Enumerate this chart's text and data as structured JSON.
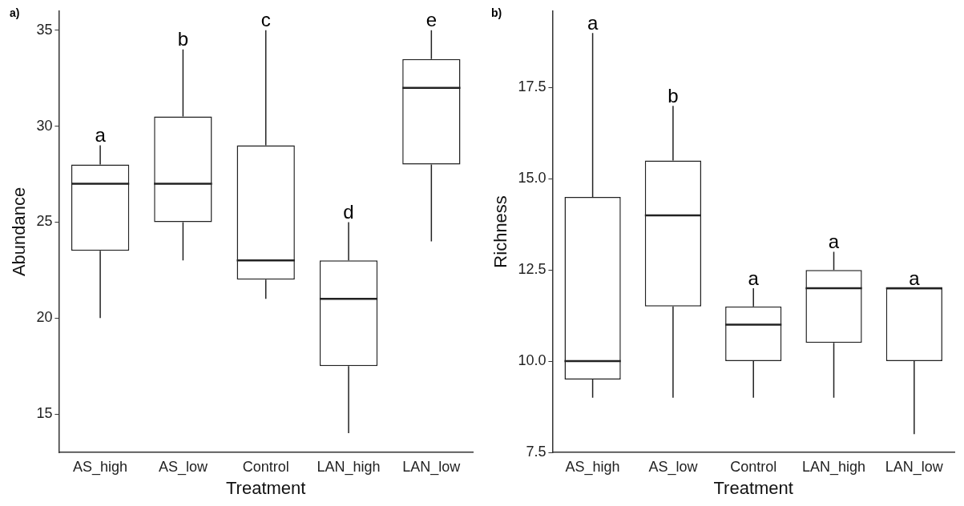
{
  "chart_data": [
    {
      "type": "box",
      "xlabel": "Treatment",
      "ylabel": "Abundance",
      "categories": [
        "AS_high",
        "AS_low",
        "Control",
        "LAN_high",
        "LAN_low"
      ],
      "boxes": [
        {
          "low": 20,
          "q1": 23.5,
          "median": 27,
          "q3": 28,
          "high": 29
        },
        {
          "low": 23,
          "q1": 25,
          "median": 27,
          "q3": 30.5,
          "high": 34
        },
        {
          "low": 21,
          "q1": 22,
          "median": 23,
          "q3": 29,
          "high": 35
        },
        {
          "low": 14,
          "q1": 17.5,
          "median": 21,
          "q3": 23,
          "high": 25
        },
        {
          "low": 24,
          "q1": 28,
          "median": 32,
          "q3": 33.5,
          "high": 35
        }
      ],
      "ylim": [
        13,
        36
      ],
      "yticks": [
        15,
        20,
        25,
        30,
        35
      ],
      "grid": false,
      "annotations": [
        "a)",
        {
          "text": "a",
          "x": "AS_high",
          "y": 29
        },
        {
          "text": "b",
          "x": "AS_low",
          "y": 34
        },
        {
          "text": "c",
          "x": "Control",
          "y": 35
        },
        {
          "text": "d",
          "x": "LAN_high",
          "y": 25
        },
        {
          "text": "e",
          "x": "LAN_low",
          "y": 35
        }
      ]
    },
    {
      "type": "box",
      "xlabel": "Treatment",
      "ylabel": "Richness",
      "categories": [
        "AS_high",
        "AS_low",
        "Control",
        "LAN_high",
        "LAN_low"
      ],
      "boxes": [
        {
          "low": 9,
          "q1": 9.5,
          "median": 10,
          "q3": 14.5,
          "high": 19
        },
        {
          "low": 9,
          "q1": 11.5,
          "median": 14,
          "q3": 15.5,
          "high": 17
        },
        {
          "low": 9,
          "q1": 10,
          "median": 11,
          "q3": 11.5,
          "high": 12
        },
        {
          "low": 9,
          "q1": 10.5,
          "median": 12,
          "q3": 12.5,
          "high": 13
        },
        {
          "low": 8,
          "q1": 10,
          "median": 12,
          "q3": 12,
          "high": 12
        }
      ],
      "ylim": [
        7.5,
        19.6
      ],
      "yticks": [
        {
          "value": 7.5,
          "label": "7.5"
        },
        {
          "value": 10,
          "label": "10.0"
        },
        {
          "value": 12.5,
          "label": "12.5"
        },
        {
          "value": 15,
          "label": "15.0"
        },
        {
          "value": 17.5,
          "label": "17.5"
        }
      ],
      "grid": false,
      "annotations": [
        "b)",
        {
          "text": "a",
          "x": "AS_high",
          "y": 19
        },
        {
          "text": "b",
          "x": "AS_low",
          "y": 17
        },
        {
          "text": "a",
          "x": "Control",
          "y": 12
        },
        {
          "text": "a",
          "x": "LAN_high",
          "y": 13
        },
        {
          "text": "a",
          "x": "LAN_low",
          "y": 12
        }
      ]
    }
  ]
}
